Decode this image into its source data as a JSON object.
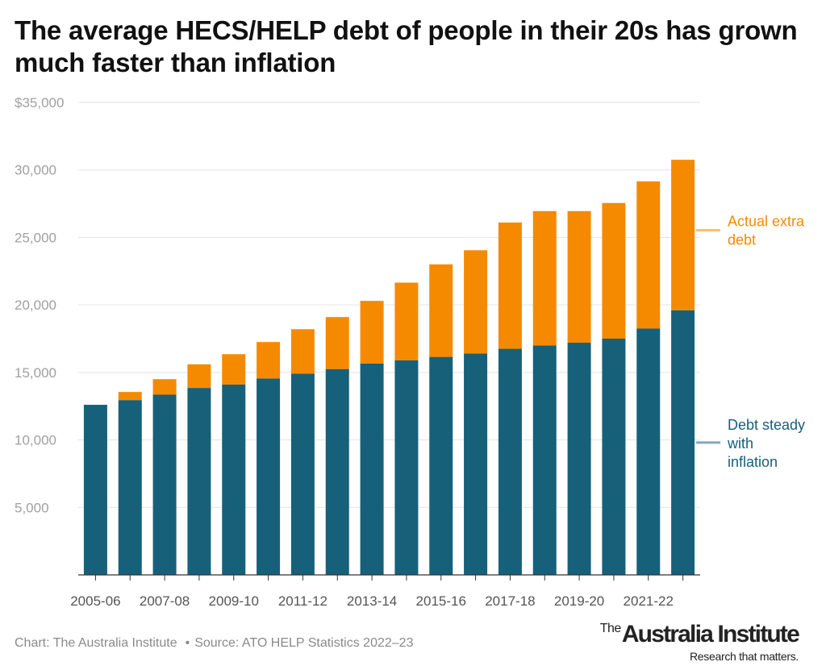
{
  "brand_colors": {
    "base": "#17607a",
    "extra": "#f58a00",
    "grid": "#e3e3e3",
    "axis_text": "#a0a0a0"
  },
  "chart_data": {
    "type": "bar",
    "stacked": true,
    "title": "The average HECS/HELP debt of people in their 20s has grown much faster than inflation",
    "xlabel": "",
    "ylabel": "",
    "ylim": [
      0,
      35000
    ],
    "yticks": [
      {
        "value": 5000,
        "label": "5,000"
      },
      {
        "value": 10000,
        "label": "10,000"
      },
      {
        "value": 15000,
        "label": "15,000"
      },
      {
        "value": 20000,
        "label": "20,000"
      },
      {
        "value": 25000,
        "label": "25,000"
      },
      {
        "value": 30000,
        "label": "30,000"
      },
      {
        "value": 35000,
        "label": "$35,000"
      }
    ],
    "grid": true,
    "categories": [
      "2005-06",
      "2006-07",
      "2007-08",
      "2008-09",
      "2009-10",
      "2010-11",
      "2011-12",
      "2012-13",
      "2013-14",
      "2014-15",
      "2015-16",
      "2016-17",
      "2017-18",
      "2018-19",
      "2019-20",
      "2020-21",
      "2021-22",
      "2022-23"
    ],
    "xtick_labels": [
      "2005-06",
      "",
      "2007-08",
      "",
      "2009-10",
      "",
      "2011-12",
      "",
      "2013-14",
      "",
      "2015-16",
      "",
      "2017-18",
      "",
      "2019-20",
      "",
      "2021-22",
      ""
    ],
    "series": [
      {
        "name": "Debt steady with inflation",
        "label_lines": [
          "Debt steady",
          "with",
          "inflation"
        ],
        "color": "#17607a",
        "values": [
          12600,
          12950,
          13350,
          13850,
          14100,
          14550,
          14900,
          15250,
          15650,
          15900,
          16150,
          16400,
          16750,
          17000,
          17200,
          17500,
          18250,
          19600
        ]
      },
      {
        "name": "Actual extra debt",
        "label_lines": [
          "Actual extra",
          "debt"
        ],
        "color": "#f58a00",
        "values": [
          0,
          600,
          1150,
          1750,
          2250,
          2700,
          3300,
          3850,
          4650,
          5750,
          6850,
          7650,
          9350,
          9950,
          9750,
          10050,
          10900,
          11150
        ]
      }
    ]
  },
  "footer": {
    "credit": "Chart: The Australia Institute",
    "separator": "•",
    "source": "Source: ATO HELP Statistics 2022–23"
  },
  "logo": {
    "prefix": "The",
    "name": "Australia Institute",
    "tagline": "Research that matters."
  }
}
